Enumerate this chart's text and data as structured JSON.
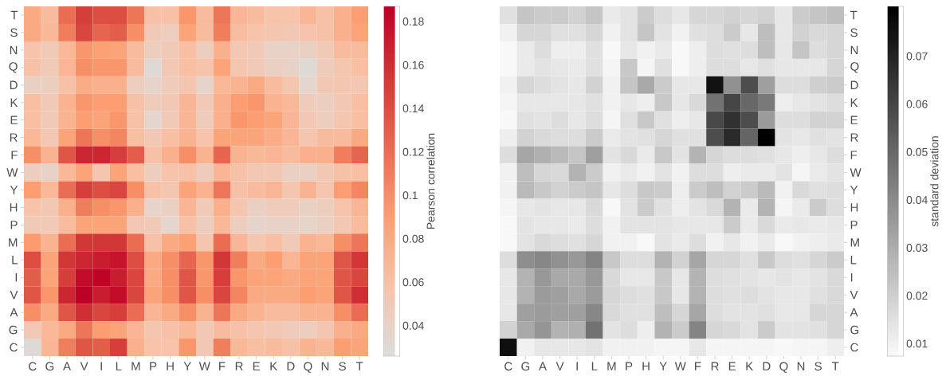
{
  "chart_data": [
    {
      "type": "heatmap",
      "clabel": "Pearson correlation",
      "clim": [
        0.026,
        0.187
      ],
      "cticks": [
        0.04,
        0.06,
        0.08,
        0.1,
        0.12,
        0.14,
        0.16,
        0.18
      ],
      "categories": [
        "C",
        "G",
        "A",
        "V",
        "I",
        "L",
        "M",
        "P",
        "H",
        "Y",
        "W",
        "F",
        "R",
        "E",
        "K",
        "D",
        "Q",
        "N",
        "S",
        "T"
      ],
      "y_categories": [
        "T",
        "S",
        "N",
        "Q",
        "D",
        "K",
        "E",
        "R",
        "F",
        "W",
        "Y",
        "H",
        "P",
        "M",
        "L",
        "I",
        "V",
        "A",
        "G",
        "C"
      ],
      "cells": [
        [
          0.08,
          0.065,
          0.12,
          0.15,
          0.14,
          0.14,
          0.115,
          0.06,
          0.06,
          0.095,
          0.065,
          0.115,
          0.07,
          0.065,
          0.058,
          0.058,
          0.07,
          0.06,
          0.075,
          0.09
        ],
        [
          0.08,
          0.068,
          0.11,
          0.145,
          0.125,
          0.13,
          0.1,
          0.05,
          0.045,
          0.085,
          0.065,
          0.11,
          0.063,
          0.058,
          0.055,
          0.052,
          0.057,
          0.06,
          0.075,
          0.085
        ],
        [
          0.058,
          0.05,
          0.068,
          0.095,
          0.088,
          0.085,
          0.065,
          0.045,
          0.05,
          0.062,
          0.045,
          0.075,
          0.052,
          0.05,
          0.04,
          0.04,
          0.042,
          0.05,
          0.065,
          0.065
        ],
        [
          0.06,
          0.05,
          0.07,
          0.1,
          0.095,
          0.095,
          0.065,
          0.03,
          0.052,
          0.062,
          0.058,
          0.085,
          0.055,
          0.05,
          0.042,
          0.04,
          0.03,
          0.048,
          0.055,
          0.062
        ],
        [
          0.042,
          0.044,
          0.06,
          0.078,
          0.075,
          0.075,
          0.045,
          0.038,
          0.048,
          0.055,
          0.036,
          0.068,
          0.072,
          0.08,
          0.065,
          0.055,
          0.035,
          0.052,
          0.055,
          0.053
        ],
        [
          0.062,
          0.05,
          0.072,
          0.095,
          0.09,
          0.09,
          0.06,
          0.048,
          0.052,
          0.07,
          0.05,
          0.075,
          0.09,
          0.095,
          0.072,
          0.068,
          0.048,
          0.044,
          0.052,
          0.062
        ],
        [
          0.062,
          0.05,
          0.072,
          0.09,
          0.085,
          0.095,
          0.06,
          0.035,
          0.05,
          0.07,
          0.048,
          0.075,
          0.095,
          0.09,
          0.085,
          0.07,
          0.052,
          0.045,
          0.055,
          0.062
        ],
        [
          0.068,
          0.052,
          0.085,
          0.115,
          0.1,
          0.105,
          0.062,
          0.052,
          0.062,
          0.072,
          0.058,
          0.085,
          0.085,
          0.085,
          0.078,
          0.07,
          0.055,
          0.065,
          0.065,
          0.08
        ],
        [
          0.1,
          0.072,
          0.135,
          0.165,
          0.165,
          0.15,
          0.13,
          0.06,
          0.075,
          0.1,
          0.072,
          0.125,
          0.072,
          0.068,
          0.07,
          0.065,
          0.075,
          0.075,
          0.11,
          0.125
        ],
        [
          0.045,
          0.04,
          0.068,
          0.085,
          0.055,
          0.085,
          0.062,
          0.045,
          0.058,
          0.06,
          0.048,
          0.07,
          0.06,
          0.052,
          0.052,
          0.042,
          0.042,
          0.052,
          0.06,
          0.062
        ],
        [
          0.09,
          0.068,
          0.12,
          0.15,
          0.14,
          0.145,
          0.1,
          0.06,
          0.055,
          0.085,
          0.072,
          0.115,
          0.06,
          0.065,
          0.07,
          0.055,
          0.072,
          0.055,
          0.09,
          0.105
        ],
        [
          0.058,
          0.052,
          0.075,
          0.11,
          0.1,
          0.095,
          0.075,
          0.038,
          0.042,
          0.07,
          0.05,
          0.075,
          0.055,
          0.042,
          0.048,
          0.048,
          0.042,
          0.045,
          0.058,
          0.07
        ],
        [
          0.05,
          0.05,
          0.065,
          0.085,
          0.085,
          0.085,
          0.052,
          0.05,
          0.035,
          0.06,
          0.045,
          0.068,
          0.045,
          0.036,
          0.04,
          0.04,
          0.038,
          0.042,
          0.052,
          0.065
        ],
        [
          0.092,
          0.072,
          0.12,
          0.155,
          0.155,
          0.155,
          0.12,
          0.06,
          0.08,
          0.088,
          0.055,
          0.12,
          0.07,
          0.055,
          0.062,
          0.05,
          0.072,
          0.068,
          0.1,
          0.115
        ],
        [
          0.14,
          0.085,
          0.155,
          0.165,
          0.17,
          0.175,
          0.14,
          0.08,
          0.1,
          0.125,
          0.095,
          0.155,
          0.11,
          0.08,
          0.09,
          0.07,
          0.085,
          0.085,
          0.135,
          0.155
        ],
        [
          0.13,
          0.085,
          0.15,
          0.18,
          0.185,
          0.17,
          0.145,
          0.08,
          0.1,
          0.135,
          0.095,
          0.15,
          0.095,
          0.085,
          0.085,
          0.08,
          0.085,
          0.085,
          0.135,
          0.145
        ],
        [
          0.135,
          0.095,
          0.165,
          0.187,
          0.17,
          0.18,
          0.145,
          0.085,
          0.1,
          0.135,
          0.1,
          0.145,
          0.105,
          0.08,
          0.08,
          0.08,
          0.09,
          0.085,
          0.135,
          0.16
        ],
        [
          0.1,
          0.08,
          0.135,
          0.16,
          0.145,
          0.15,
          0.12,
          0.07,
          0.08,
          0.1,
          0.072,
          0.115,
          0.08,
          0.072,
          0.065,
          0.065,
          0.072,
          0.072,
          0.1,
          0.12
        ],
        [
          0.052,
          0.068,
          0.08,
          0.115,
          0.09,
          0.085,
          0.07,
          0.055,
          0.06,
          0.068,
          0.052,
          0.065,
          0.06,
          0.055,
          0.052,
          0.048,
          0.045,
          0.055,
          0.075,
          0.08
        ],
        [
          0.03,
          0.07,
          0.11,
          0.135,
          0.13,
          0.15,
          0.075,
          0.058,
          0.058,
          0.095,
          0.052,
          0.11,
          0.068,
          0.062,
          0.065,
          0.06,
          0.072,
          0.068,
          0.09,
          0.085
        ]
      ]
    },
    {
      "type": "heatmap",
      "clabel": "standard deviation",
      "clim": [
        0.0074,
        0.0804
      ],
      "cticks": [
        0.01,
        0.02,
        0.03,
        0.04,
        0.05,
        0.06,
        0.07
      ],
      "categories": [
        "C",
        "G",
        "A",
        "V",
        "I",
        "L",
        "M",
        "P",
        "H",
        "Y",
        "W",
        "F",
        "R",
        "E",
        "K",
        "D",
        "Q",
        "N",
        "S",
        "T"
      ],
      "y_categories": [
        "T",
        "S",
        "N",
        "Q",
        "D",
        "K",
        "E",
        "R",
        "F",
        "W",
        "Y",
        "H",
        "P",
        "M",
        "L",
        "I",
        "V",
        "A",
        "G",
        "C"
      ],
      "cells": [
        [
          0.015,
          0.023,
          0.021,
          0.021,
          0.019,
          0.023,
          0.012,
          0.014,
          0.021,
          0.016,
          0.013,
          0.018,
          0.018,
          0.019,
          0.018,
          0.019,
          0.013,
          0.021,
          0.023,
          0.025
        ],
        [
          0.01,
          0.018,
          0.018,
          0.015,
          0.015,
          0.018,
          0.01,
          0.014,
          0.023,
          0.014,
          0.01,
          0.015,
          0.016,
          0.021,
          0.013,
          0.025,
          0.013,
          0.019,
          0.017,
          0.018
        ],
        [
          0.008,
          0.012,
          0.016,
          0.011,
          0.011,
          0.015,
          0.008,
          0.013,
          0.01,
          0.012,
          0.008,
          0.011,
          0.016,
          0.015,
          0.016,
          0.025,
          0.013,
          0.023,
          0.016,
          0.018
        ],
        [
          0.008,
          0.012,
          0.014,
          0.013,
          0.012,
          0.015,
          0.009,
          0.022,
          0.009,
          0.015,
          0.008,
          0.011,
          0.016,
          0.016,
          0.013,
          0.015,
          0.013,
          0.013,
          0.013,
          0.018
        ],
        [
          0.01,
          0.018,
          0.016,
          0.014,
          0.013,
          0.019,
          0.01,
          0.023,
          0.031,
          0.021,
          0.013,
          0.013,
          0.075,
          0.038,
          0.058,
          0.034,
          0.016,
          0.016,
          0.02,
          0.021
        ],
        [
          0.009,
          0.013,
          0.013,
          0.013,
          0.013,
          0.015,
          0.01,
          0.013,
          0.011,
          0.022,
          0.013,
          0.017,
          0.047,
          0.06,
          0.05,
          0.045,
          0.011,
          0.013,
          0.014,
          0.016
        ],
        [
          0.008,
          0.015,
          0.014,
          0.016,
          0.013,
          0.016,
          0.009,
          0.015,
          0.022,
          0.015,
          0.011,
          0.013,
          0.059,
          0.066,
          0.058,
          0.035,
          0.016,
          0.016,
          0.019,
          0.019
        ],
        [
          0.011,
          0.019,
          0.017,
          0.016,
          0.016,
          0.021,
          0.012,
          0.014,
          0.015,
          0.018,
          0.015,
          0.015,
          0.058,
          0.068,
          0.051,
          0.08,
          0.014,
          0.013,
          0.015,
          0.014
        ],
        [
          0.016,
          0.032,
          0.029,
          0.026,
          0.023,
          0.034,
          0.014,
          0.017,
          0.012,
          0.022,
          0.014,
          0.028,
          0.018,
          0.016,
          0.016,
          0.015,
          0.013,
          0.011,
          0.013,
          0.016
        ],
        [
          0.01,
          0.025,
          0.018,
          0.017,
          0.028,
          0.021,
          0.01,
          0.012,
          0.01,
          0.014,
          0.01,
          0.016,
          0.016,
          0.011,
          0.012,
          0.012,
          0.014,
          0.009,
          0.012,
          0.014
        ],
        [
          0.01,
          0.026,
          0.022,
          0.019,
          0.021,
          0.023,
          0.013,
          0.016,
          0.022,
          0.021,
          0.011,
          0.021,
          0.025,
          0.019,
          0.021,
          0.026,
          0.01,
          0.017,
          0.015,
          0.016
        ],
        [
          0.009,
          0.013,
          0.014,
          0.013,
          0.013,
          0.017,
          0.008,
          0.014,
          0.021,
          0.015,
          0.011,
          0.014,
          0.017,
          0.028,
          0.012,
          0.028,
          0.009,
          0.012,
          0.021,
          0.016
        ],
        [
          0.008,
          0.014,
          0.013,
          0.013,
          0.012,
          0.016,
          0.01,
          0.014,
          0.014,
          0.014,
          0.013,
          0.013,
          0.013,
          0.021,
          0.012,
          0.017,
          0.012,
          0.013,
          0.012,
          0.013
        ],
        [
          0.008,
          0.014,
          0.017,
          0.016,
          0.015,
          0.018,
          0.01,
          0.01,
          0.008,
          0.014,
          0.012,
          0.016,
          0.01,
          0.013,
          0.01,
          0.012,
          0.008,
          0.01,
          0.011,
          0.012
        ],
        [
          0.016,
          0.039,
          0.041,
          0.038,
          0.036,
          0.042,
          0.022,
          0.016,
          0.016,
          0.028,
          0.019,
          0.032,
          0.018,
          0.018,
          0.015,
          0.022,
          0.016,
          0.015,
          0.018,
          0.021
        ],
        [
          0.013,
          0.028,
          0.036,
          0.031,
          0.031,
          0.036,
          0.017,
          0.013,
          0.013,
          0.022,
          0.013,
          0.028,
          0.016,
          0.015,
          0.014,
          0.013,
          0.014,
          0.013,
          0.014,
          0.017
        ],
        [
          0.013,
          0.028,
          0.035,
          0.034,
          0.031,
          0.035,
          0.018,
          0.016,
          0.015,
          0.022,
          0.013,
          0.028,
          0.016,
          0.015,
          0.016,
          0.014,
          0.013,
          0.013,
          0.015,
          0.017
        ],
        [
          0.013,
          0.034,
          0.035,
          0.034,
          0.034,
          0.041,
          0.017,
          0.015,
          0.015,
          0.025,
          0.018,
          0.032,
          0.016,
          0.014,
          0.014,
          0.015,
          0.013,
          0.013,
          0.018,
          0.018
        ],
        [
          0.019,
          0.031,
          0.037,
          0.028,
          0.029,
          0.047,
          0.014,
          0.016,
          0.011,
          0.028,
          0.021,
          0.042,
          0.018,
          0.017,
          0.014,
          0.021,
          0.014,
          0.014,
          0.015,
          0.018
        ],
        [
          0.076,
          0.01,
          0.013,
          0.013,
          0.013,
          0.014,
          0.01,
          0.01,
          0.01,
          0.009,
          0.009,
          0.013,
          0.009,
          0.009,
          0.009,
          0.009,
          0.008,
          0.009,
          0.009,
          0.011
        ]
      ]
    }
  ]
}
